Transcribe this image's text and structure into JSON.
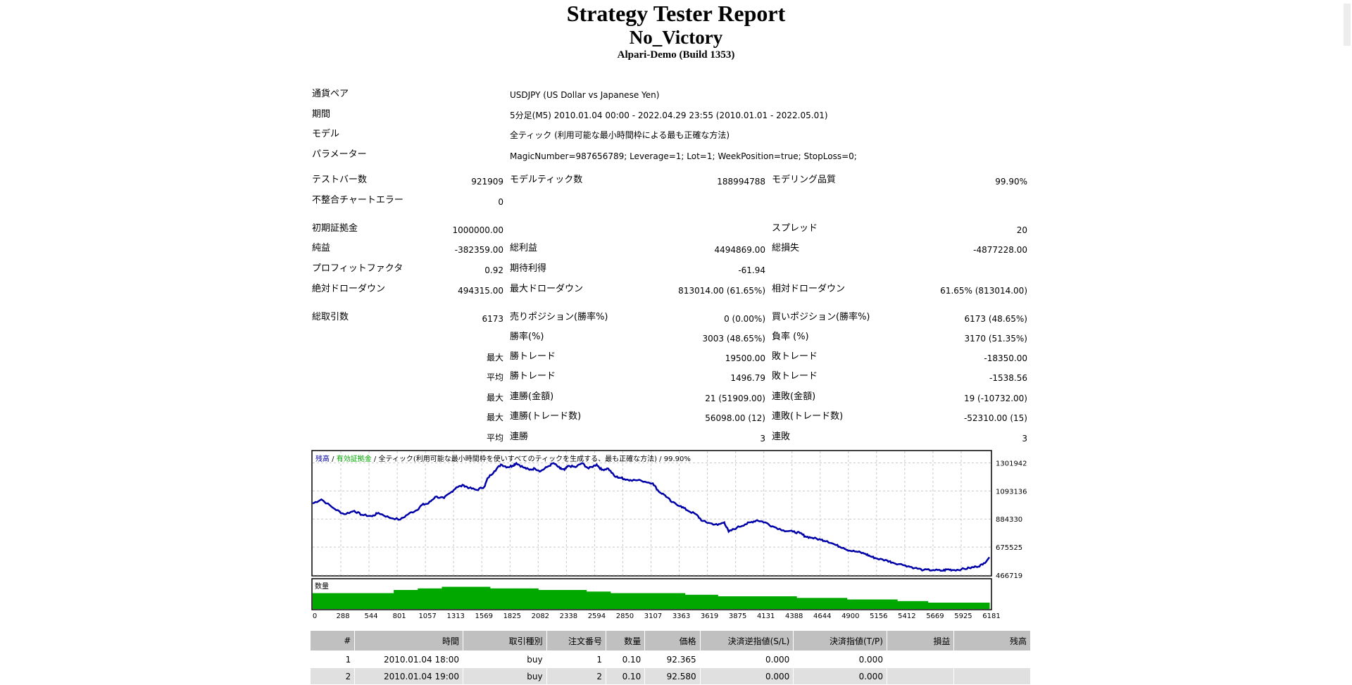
{
  "report": {
    "title": "Strategy Tester Report",
    "expert": "No_Victory",
    "server": "Alpari-Demo (Build 1353)"
  },
  "settings": [
    {
      "label": "通貨ペア",
      "value": "USDJPY (US Dollar vs Japanese Yen)"
    },
    {
      "label": "期間",
      "value": "5分足(M5) 2010.01.04 00:00 - 2022.04.29 23:55 (2010.01.01 - 2022.05.01)"
    },
    {
      "label": "モデル",
      "value": "全ティック (利用可能な最小時間枠による最も正確な方法)"
    },
    {
      "label": "パラメーター",
      "value": "MagicNumber=987656789; Leverage=1; Lot=1; WeekPosition=true; StopLoss=0;"
    }
  ],
  "stats": {
    "bars_label": "テストバー数",
    "bars": "921909",
    "ticks_label": "モデルティック数",
    "ticks": "188994788",
    "quality_label": "モデリング品質",
    "quality": "99.90%",
    "mismatch_label": "不整合チャートエラー",
    "mismatch": "0",
    "deposit_label": "初期証拠金",
    "deposit": "1000000.00",
    "spread_label": "スプレッド",
    "spread": "20",
    "net_label": "純益",
    "net": "-382359.00",
    "gross_profit_label": "総利益",
    "gross_profit": "4494869.00",
    "gross_loss_label": "総損失",
    "gross_loss": "-4877228.00",
    "pf_label": "プロフィットファクタ",
    "pf": "0.92",
    "expected_label": "期待利得",
    "expected": "-61.94",
    "abs_dd_label": "絶対ドローダウン",
    "abs_dd": "494315.00",
    "max_dd_label": "最大ドローダウン",
    "max_dd": "813014.00 (61.65%)",
    "rel_dd_label": "相対ドローダウン",
    "rel_dd": "61.65% (813014.00)",
    "total_trades_label": "総取引数",
    "total_trades": "6173",
    "short_label": "売りポジション(勝率%)",
    "short": "0 (0.00%)",
    "long_label": "買いポジション(勝率%)",
    "long": "6173 (48.65%)",
    "win_pct_label": "勝率(%)",
    "win_pct": "3003 (48.65%)",
    "loss_pct_label": "負率 (%)",
    "loss_pct": "3170 (51.35%)",
    "max_word": "最大",
    "avg_word": "平均",
    "win_trade_label": "勝トレード",
    "loss_trade_label": "敗トレード",
    "max_win": "19500.00",
    "max_loss": "-18350.00",
    "avg_win": "1496.79",
    "avg_loss": "-1538.56",
    "cons_win_money_label": "連勝(金額)",
    "cons_win_money": "21 (51909.00)",
    "cons_loss_money_label": "連敗(金額)",
    "cons_loss_money": "19 (-10732.00)",
    "cons_win_count_label": "連勝(トレード数)",
    "cons_win_count": "56098.00 (12)",
    "cons_loss_count_label": "連敗(トレード数)",
    "cons_loss_count": "-52310.00 (15)",
    "avg_cons_win_label": "連勝",
    "avg_cons_win": "3",
    "avg_cons_loss_label": "連敗",
    "avg_cons_loss": "3"
  },
  "colors": {
    "balance": "#0000a8",
    "volume": "#00a800",
    "grid": "#c8c8c8"
  },
  "chart_data": {
    "type": "line",
    "legend": {
      "balance": "残高",
      "sep1": " / ",
      "equity": "有効証拠金",
      "sep2": " / ",
      "model": "全ティック(利用可能な最小時間枠を使いすべてのティックを生成する、最も正確な方法)",
      "sep3": " / ",
      "quality": "99.90%"
    },
    "volume_label": "数量",
    "y_ticks": [
      "1301942",
      "1093136",
      "884330",
      "675525",
      "466719"
    ],
    "y_tick_values": [
      1301942,
      1093136,
      884330,
      675525,
      466719
    ],
    "x_ticks": [
      "0",
      "288",
      "544",
      "801",
      "1057",
      "1313",
      "1569",
      "1825",
      "2082",
      "2338",
      "2594",
      "2850",
      "3107",
      "3363",
      "3619",
      "3875",
      "4131",
      "4388",
      "4644",
      "4900",
      "5156",
      "5412",
      "5669",
      "5925",
      "6181"
    ],
    "ylim": [
      466719,
      1388000
    ],
    "xlim": [
      0,
      6181
    ],
    "series": [
      {
        "name": "残高",
        "x": [
          0,
          80,
          200,
          288,
          380,
          450,
          544,
          600,
          700,
          801,
          880,
          950,
          1000,
          1057,
          1120,
          1200,
          1260,
          1313,
          1380,
          1430,
          1500,
          1569,
          1600,
          1660,
          1720,
          1780,
          1825,
          1860,
          1920,
          1980,
          2030,
          2082,
          2140,
          2200,
          2260,
          2300,
          2338,
          2400,
          2460,
          2520,
          2594,
          2640,
          2700,
          2760,
          2820,
          2850,
          2900,
          3000,
          3107,
          3160,
          3220,
          3280,
          3363,
          3420,
          3500,
          3560,
          3619,
          3700,
          3760,
          3800,
          3875,
          3950,
          4000,
          4060,
          4131,
          4200,
          4300,
          4388,
          4450,
          4500,
          4560,
          4644,
          4700,
          4780,
          4850,
          4900,
          4980,
          5050,
          5100,
          5156,
          5250,
          5300,
          5412,
          5500,
          5580,
          5669,
          5750,
          5800,
          5850,
          5925,
          6000,
          6060,
          6120,
          6181
        ],
        "y": [
          1000000,
          1030000,
          960000,
          920000,
          945000,
          915000,
          905000,
          930000,
          895000,
          880000,
          925000,
          950000,
          990000,
          1000000,
          1050000,
          1040000,
          1080000,
          1120000,
          1135000,
          1115000,
          1100000,
          1125000,
          1190000,
          1240000,
          1290000,
          1270000,
          1280000,
          1300000,
          1270000,
          1250000,
          1260000,
          1240000,
          1270000,
          1300000,
          1260000,
          1250000,
          1280000,
          1270000,
          1300000,
          1260000,
          1290000,
          1250000,
          1260000,
          1200000,
          1190000,
          1180000,
          1175000,
          1170000,
          1150000,
          1090000,
          1060000,
          1010000,
          980000,
          950000,
          920000,
          870000,
          855000,
          840000,
          860000,
          790000,
          820000,
          845000,
          860000,
          875000,
          860000,
          830000,
          800000,
          790000,
          780000,
          755000,
          745000,
          730000,
          720000,
          690000,
          670000,
          650000,
          640000,
          625000,
          605000,
          590000,
          575000,
          560000,
          540000,
          520000,
          505000,
          505000,
          500000,
          510000,
          505000,
          510000,
          520000,
          530000,
          545000,
          600000
        ]
      }
    ],
    "volume": {
      "x": [
        0,
        240,
        360,
        520,
        740,
        960,
        1180,
        1400,
        1620,
        1840,
        2060,
        2280,
        2500,
        2720,
        2940,
        3150,
        3400,
        3560,
        3700,
        3960,
        4180,
        4420,
        4640,
        4880,
        5100,
        5340,
        5620,
        5900,
        6181
      ],
      "y": [
        0.1,
        0.1,
        0.1,
        0.1,
        0.12,
        0.13,
        0.14,
        0.14,
        0.13,
        0.13,
        0.12,
        0.12,
        0.11,
        0.1,
        0.1,
        0.1,
        0.09,
        0.09,
        0.08,
        0.08,
        0.08,
        0.07,
        0.07,
        0.06,
        0.06,
        0.05,
        0.04,
        0.04,
        0.04
      ]
    }
  },
  "table": {
    "headers": [
      "#",
      "時間",
      "取引種別",
      "注文番号",
      "数量",
      "価格",
      "決済逆指値(S/L)",
      "決済指値(T/P)",
      "損益",
      "残高"
    ],
    "rows": [
      [
        "1",
        "2010.01.04 18:00",
        "buy",
        "1",
        "0.10",
        "92.365",
        "0.000",
        "0.000",
        "",
        ""
      ],
      [
        "2",
        "2010.01.04 19:00",
        "buy",
        "2",
        "0.10",
        "92.580",
        "0.000",
        "0.000",
        "",
        ""
      ]
    ]
  }
}
